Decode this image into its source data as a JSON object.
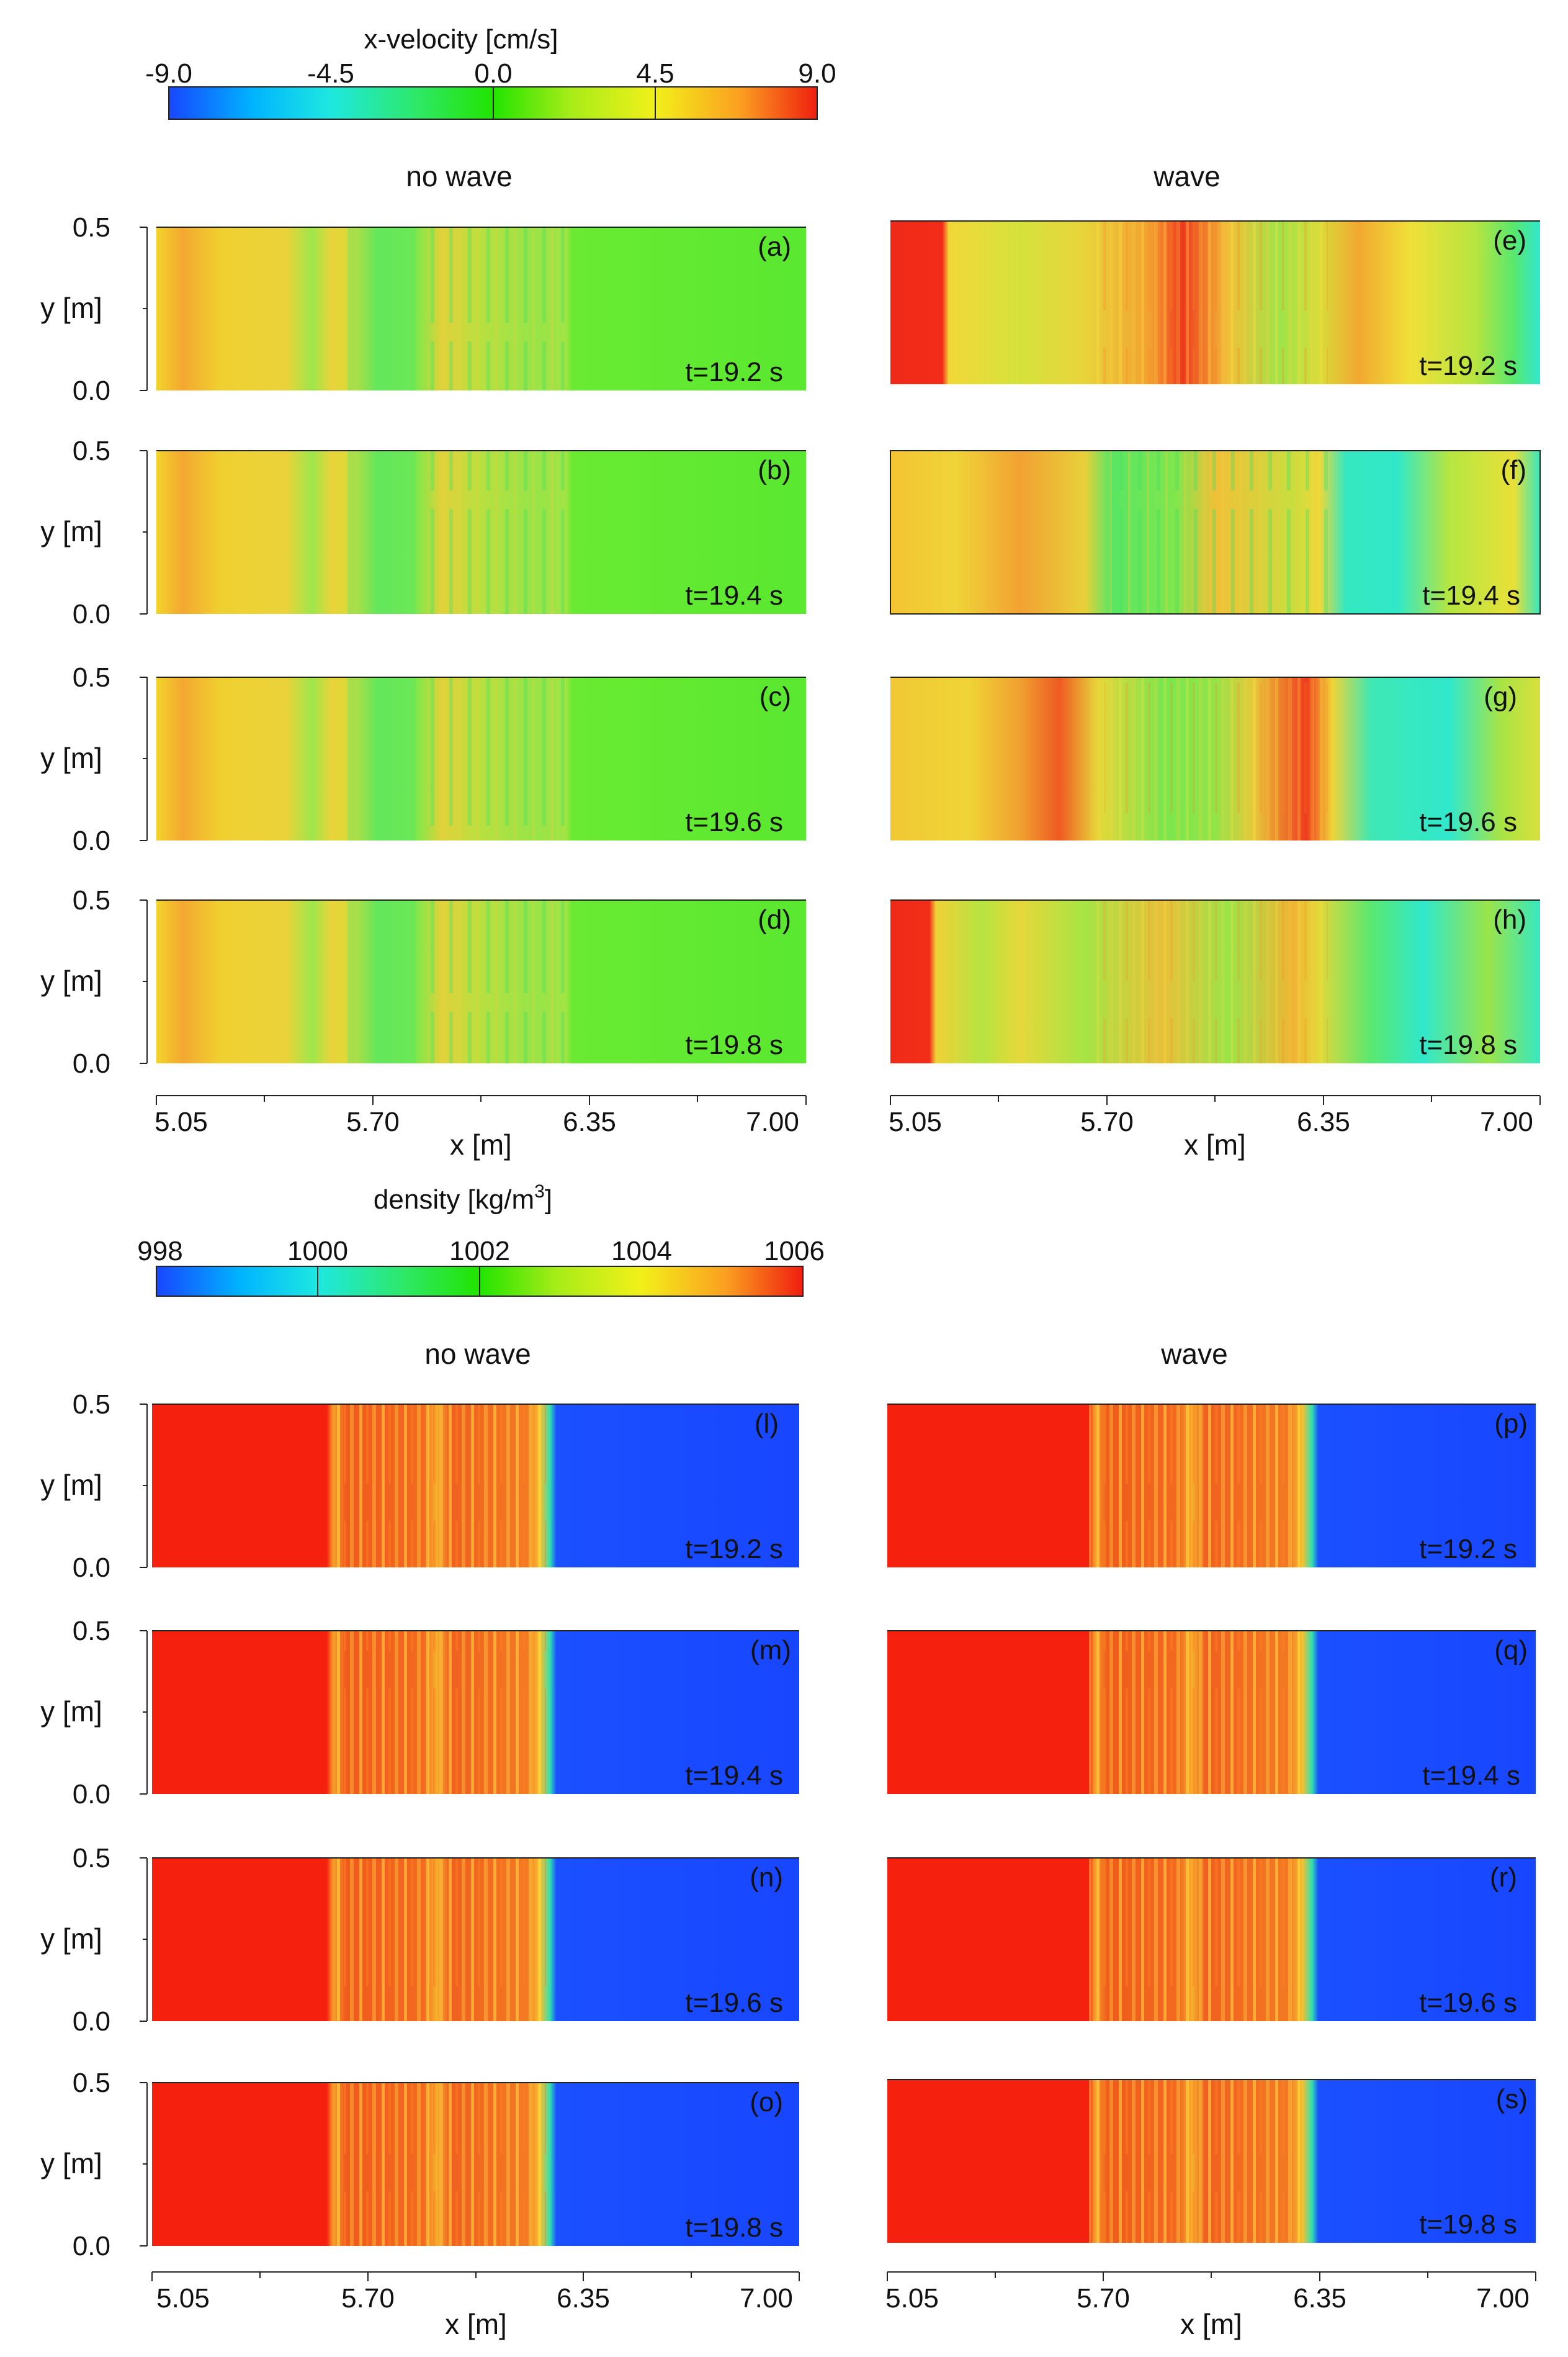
{
  "chart_data": {
    "type": "heatmap",
    "velocity": {
      "title": "x-velocity [cm/s]",
      "colorbar_ticks": [
        "-9.0",
        "-4.5",
        "0.0",
        "4.5",
        "9.0"
      ],
      "range": [
        -9.0,
        9.0
      ],
      "column_titles": [
        "no wave",
        "wave"
      ],
      "panels": [
        {
          "label": "(a)",
          "time": "t=19.2 s",
          "column": "no wave"
        },
        {
          "label": "(b)",
          "time": "t=19.4 s",
          "column": "no wave"
        },
        {
          "label": "(c)",
          "time": "t=19.6 s",
          "column": "no wave"
        },
        {
          "label": "(d)",
          "time": "t=19.8 s",
          "column": "no wave"
        },
        {
          "label": "(e)",
          "time": "t=19.2 s",
          "column": "wave"
        },
        {
          "label": "(f)",
          "time": "t=19.4 s",
          "column": "wave"
        },
        {
          "label": "(g)",
          "time": "t=19.6 s",
          "column": "wave"
        },
        {
          "label": "(h)",
          "time": "t=19.8 s",
          "column": "wave"
        }
      ]
    },
    "density": {
      "title": "density [kg/m",
      "title_sup": "3",
      "title_end": "]",
      "colorbar_ticks": [
        "998",
        "1000",
        "1002",
        "1004",
        "1006"
      ],
      "range": [
        998,
        1006
      ],
      "column_titles": [
        "no wave",
        "wave"
      ],
      "panels": [
        {
          "label": "(l)",
          "time": "t=19.2 s",
          "column": "no wave"
        },
        {
          "label": "(m)",
          "time": "t=19.4 s",
          "column": "no wave"
        },
        {
          "label": "(n)",
          "time": "t=19.6 s",
          "column": "no wave"
        },
        {
          "label": "(o)",
          "time": "t=19.8 s",
          "column": "no wave"
        },
        {
          "label": "(p)",
          "time": "t=19.2 s",
          "column": "wave"
        },
        {
          "label": "(q)",
          "time": "t=19.4 s",
          "column": "wave"
        },
        {
          "label": "(r)",
          "time": "t=19.6 s",
          "column": "wave"
        },
        {
          "label": "(s)",
          "time": "t=19.8 s",
          "column": "wave"
        }
      ]
    },
    "ylabel": "y [m]",
    "yticks": [
      "0.0",
      "0.5"
    ],
    "ylim": [
      0.0,
      0.5
    ],
    "xlabel": "x [m]",
    "xticks": [
      "5.05",
      "5.70",
      "6.35",
      "7.00"
    ],
    "xlim": [
      5.05,
      7.0
    ]
  }
}
